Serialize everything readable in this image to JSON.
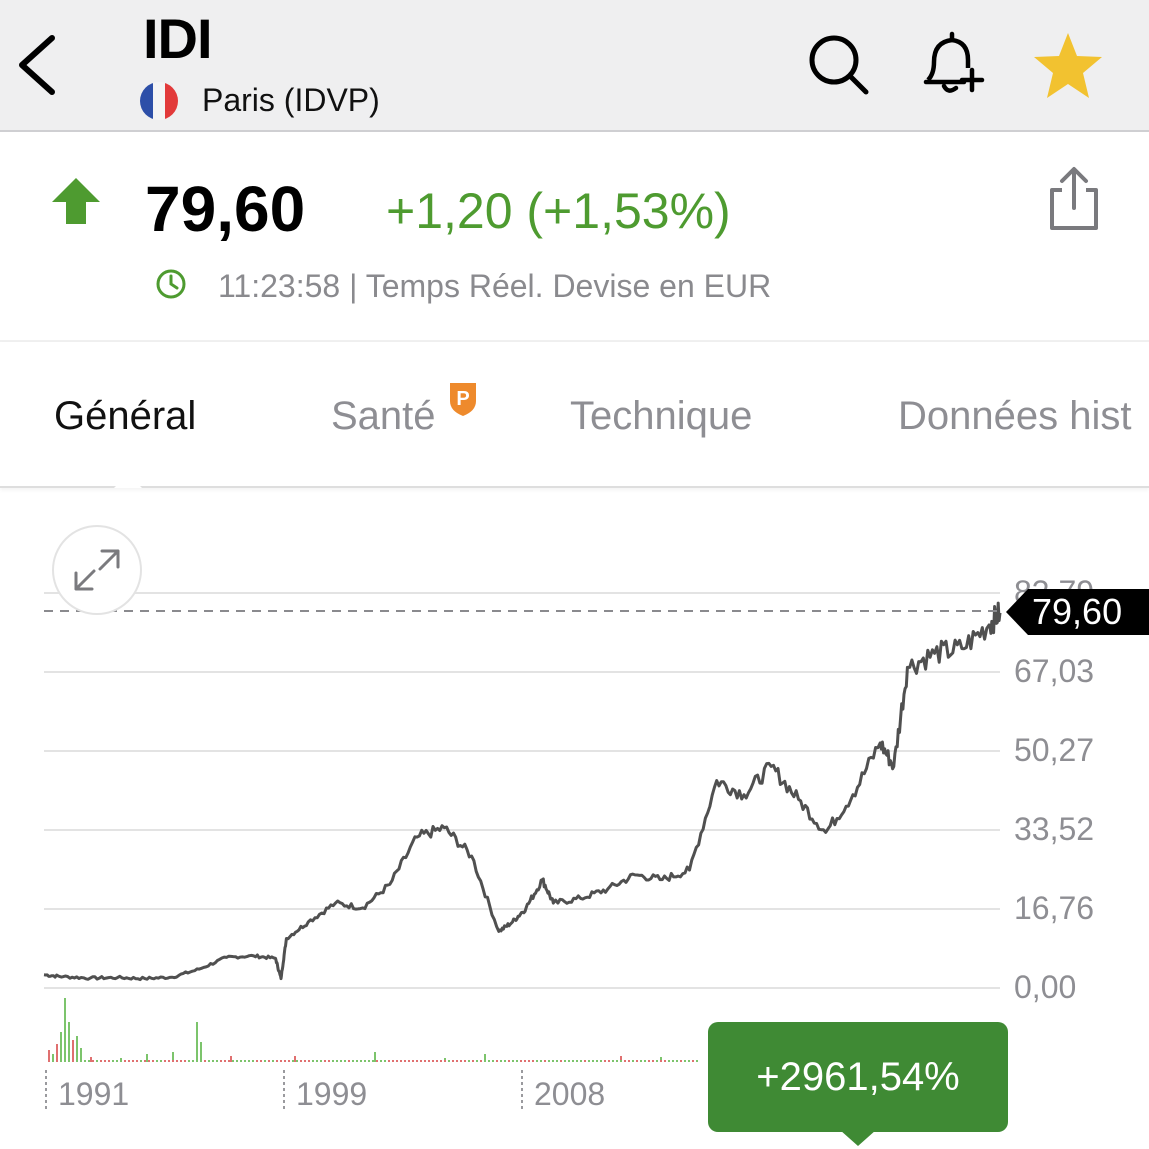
{
  "header": {
    "ticker": "IDI",
    "exchange": "Paris (IDVP)",
    "icons": [
      "back-icon",
      "search-icon",
      "bell-plus-icon",
      "star-icon"
    ],
    "star_color": "#f2c230"
  },
  "quote": {
    "price": "79,60",
    "change": "+1,20 (+1,53%)",
    "time_info": "11:23:58 | Temps Réel. Devise en EUR",
    "direction": "up",
    "up_color": "#4e9b30"
  },
  "tabs": [
    {
      "label": "Général",
      "active": true
    },
    {
      "label": "Santé",
      "active": false,
      "badge": "P"
    },
    {
      "label": "Technique",
      "active": false
    },
    {
      "label": "Données hist",
      "active": false
    }
  ],
  "chart_data": {
    "type": "line",
    "y_ticks": [
      "83,79",
      "67,03",
      "50,27",
      "33,52",
      "16,76",
      "0,00"
    ],
    "x_ticks": [
      "1991",
      "1999",
      "2008"
    ],
    "last_price": "79,60",
    "performance": "+2961,54%",
    "x": [
      1989.3,
      1990,
      1991,
      1992,
      1993,
      1994,
      1995,
      1996,
      1997,
      1997.8,
      1998,
      1998.2,
      1999,
      2000,
      2001,
      2002,
      2003,
      2004,
      2005,
      2006,
      2006.5,
      2007,
      2007.6,
      2008,
      2009,
      2010,
      2011,
      2012,
      2013,
      2014,
      2015,
      2016,
      2017,
      2018,
      2019,
      2020,
      2020.5,
      2021,
      2022,
      2023,
      2024,
      2024.4
    ],
    "y": [
      2.8,
      2.4,
      2.1,
      2.2,
      2.0,
      2.3,
      4.0,
      6.5,
      6.8,
      6.3,
      2.0,
      10.5,
      14.0,
      18.0,
      17.0,
      22.0,
      32.0,
      34.0,
      28.0,
      12.0,
      14.0,
      17.0,
      23.0,
      18.0,
      19.0,
      21.0,
      24.0,
      23.0,
      25.0,
      44.0,
      41.0,
      47.0,
      40.0,
      33.0,
      41.0,
      52.0,
      47.0,
      68.0,
      71.0,
      72.0,
      77.0,
      79.6
    ],
    "grid": true,
    "up_color": "#3f8a34"
  }
}
